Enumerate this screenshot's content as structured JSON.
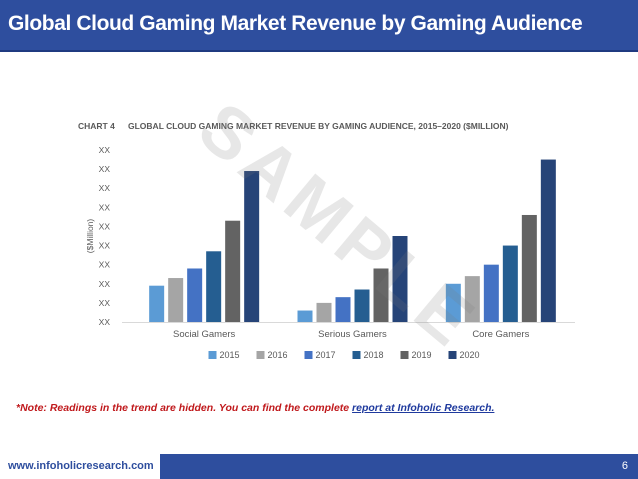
{
  "header": {
    "title": "Global  Cloud Gaming Market Revenue by Gaming Audience"
  },
  "watermark": "SAMPLE",
  "note": {
    "text": "*Note: Readings in the trend are hidden. You can find the complete ",
    "link_text": "report at Infoholic Research."
  },
  "footer": {
    "url": "www.infoholicresearch.com",
    "page": "6"
  },
  "chart_data": {
    "type": "bar",
    "chart_number": "CHART 4",
    "title": "GLOBAL CLOUD GAMING MARKET REVENUE BY GAMING AUDIENCE, 2015–2020 ($MILLION)",
    "ylabel": "($Million)",
    "ytick_labels": [
      "XX",
      "XX",
      "XX",
      "XX",
      "XX",
      "XX",
      "XX",
      "XX",
      "XX",
      "XX"
    ],
    "categories": [
      "Social Gamers",
      "Serious Gamers",
      "Core Gamers"
    ],
    "ylim": [
      0,
      9
    ],
    "grid": false,
    "legend": "bottom",
    "series": [
      {
        "name": "2015",
        "color": "#5b9bd5",
        "values": [
          1.9,
          0.6,
          2.0
        ]
      },
      {
        "name": "2016",
        "color": "#a5a5a5",
        "values": [
          2.3,
          1.0,
          2.4
        ]
      },
      {
        "name": "2017",
        "color": "#4472c4",
        "values": [
          2.8,
          1.3,
          3.0
        ]
      },
      {
        "name": "2018",
        "color": "#255e91",
        "values": [
          3.7,
          1.7,
          4.0
        ]
      },
      {
        "name": "2019",
        "color": "#636363",
        "values": [
          5.3,
          2.8,
          5.6
        ]
      },
      {
        "name": "2020",
        "color": "#264478",
        "values": [
          7.9,
          4.5,
          8.5
        ]
      }
    ]
  }
}
